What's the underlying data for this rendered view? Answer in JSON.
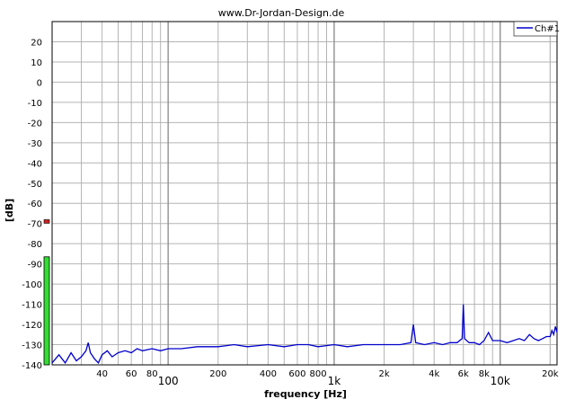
{
  "chart_data": {
    "type": "line",
    "title": "www.Dr-Jordan-Design.de",
    "xlabel": "frequency [Hz]",
    "ylabel": "[dB]",
    "x_scale": "log",
    "xlim": [
      20,
      22000
    ],
    "ylim": [
      -140,
      30
    ],
    "y_ticks": [
      20,
      10,
      0,
      -10,
      -20,
      -30,
      -40,
      -50,
      -60,
      -70,
      -80,
      -90,
      -100,
      -110,
      -120,
      -130,
      -140
    ],
    "x_ticks_minor": [
      {
        "value": 40,
        "label": "40"
      },
      {
        "value": 60,
        "label": "60"
      },
      {
        "value": 80,
        "label": "80"
      },
      {
        "value": 200,
        "label": "200"
      },
      {
        "value": 400,
        "label": "400"
      },
      {
        "value": 600,
        "label": "600"
      },
      {
        "value": 800,
        "label": "800"
      },
      {
        "value": 2000,
        "label": "2k"
      },
      {
        "value": 4000,
        "label": "4k"
      },
      {
        "value": 6000,
        "label": "6k"
      },
      {
        "value": 8000,
        "label": "8k"
      },
      {
        "value": 20000,
        "label": "20k"
      }
    ],
    "x_ticks_major": [
      {
        "value": 100,
        "label": "100"
      },
      {
        "value": 1000,
        "label": "1k"
      },
      {
        "value": 10000,
        "label": "10k"
      }
    ],
    "grid": true,
    "legend_position": "top-right",
    "series": [
      {
        "name": "Ch#1",
        "color": "#0000cc",
        "points": [
          [
            20,
            -139
          ],
          [
            22,
            -135
          ],
          [
            24,
            -139
          ],
          [
            26,
            -134
          ],
          [
            28,
            -138
          ],
          [
            30,
            -136
          ],
          [
            32,
            -133
          ],
          [
            33,
            -129
          ],
          [
            34,
            -134
          ],
          [
            36,
            -137
          ],
          [
            38,
            -139
          ],
          [
            40,
            -135
          ],
          [
            43,
            -133
          ],
          [
            46,
            -136
          ],
          [
            50,
            -134
          ],
          [
            55,
            -133
          ],
          [
            60,
            -134
          ],
          [
            65,
            -132
          ],
          [
            70,
            -133
          ],
          [
            80,
            -132
          ],
          [
            90,
            -133
          ],
          [
            100,
            -132
          ],
          [
            120,
            -132
          ],
          [
            150,
            -131
          ],
          [
            200,
            -131
          ],
          [
            250,
            -130
          ],
          [
            300,
            -131
          ],
          [
            400,
            -130
          ],
          [
            500,
            -131
          ],
          [
            600,
            -130
          ],
          [
            700,
            -130
          ],
          [
            800,
            -131
          ],
          [
            1000,
            -130
          ],
          [
            1200,
            -131
          ],
          [
            1500,
            -130
          ],
          [
            2000,
            -130
          ],
          [
            2500,
            -130
          ],
          [
            2900,
            -129
          ],
          [
            3000,
            -120
          ],
          [
            3100,
            -129
          ],
          [
            3500,
            -130
          ],
          [
            4000,
            -129
          ],
          [
            4500,
            -130
          ],
          [
            5000,
            -129
          ],
          [
            5500,
            -129
          ],
          [
            5900,
            -127
          ],
          [
            6000,
            -110
          ],
          [
            6100,
            -127
          ],
          [
            6500,
            -129
          ],
          [
            7000,
            -129
          ],
          [
            7500,
            -130
          ],
          [
            8000,
            -128
          ],
          [
            8500,
            -124
          ],
          [
            9000,
            -128
          ],
          [
            10000,
            -128
          ],
          [
            11000,
            -129
          ],
          [
            12000,
            -128
          ],
          [
            13000,
            -127
          ],
          [
            14000,
            -128
          ],
          [
            15000,
            -125
          ],
          [
            16000,
            -127
          ],
          [
            17000,
            -128
          ],
          [
            18000,
            -127
          ],
          [
            19000,
            -126
          ],
          [
            20000,
            -126
          ],
          [
            20500,
            -123
          ],
          [
            21000,
            -125
          ],
          [
            21500,
            -121
          ],
          [
            22000,
            -124
          ]
        ]
      }
    ],
    "level_meters": [
      {
        "level_db": -86.5,
        "color": "#33dd33"
      },
      {
        "level_db": -69,
        "color": "#cc2222"
      }
    ]
  }
}
